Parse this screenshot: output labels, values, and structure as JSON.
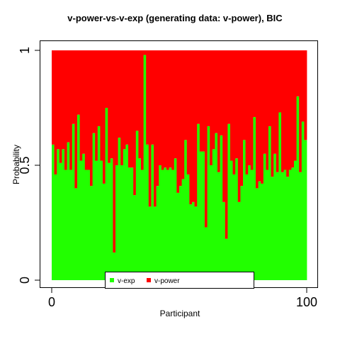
{
  "chart_data": {
    "type": "bar",
    "stacked": true,
    "title": "v-power-vs-v-exp (generating data: v-power), BIC",
    "xlabel": "Participant",
    "ylabel": "Probability",
    "xlim": [
      0,
      100
    ],
    "ylim": [
      0,
      1
    ],
    "xticks": [
      0,
      100
    ],
    "yticks": [
      0,
      0.5,
      1
    ],
    "xtick_labels": [
      "0",
      "100"
    ],
    "ytick_labels": [
      "0",
      "0.5",
      "1"
    ],
    "legend": {
      "position": "bottom-center",
      "entries": [
        "v-exp",
        "v-power"
      ]
    },
    "colors": {
      "v-exp": "#22ff00",
      "v-power": "#ff0000"
    },
    "x": [
      1,
      2,
      3,
      4,
      5,
      6,
      7,
      8,
      9,
      10,
      11,
      12,
      13,
      14,
      15,
      16,
      17,
      18,
      19,
      20,
      21,
      22,
      23,
      24,
      25,
      26,
      27,
      28,
      29,
      30,
      31,
      32,
      33,
      34,
      35,
      36,
      37,
      38,
      39,
      40,
      41,
      42,
      43,
      44,
      45,
      46,
      47,
      48,
      49,
      50,
      51,
      52,
      53,
      54,
      55,
      56,
      57,
      58,
      59,
      60,
      61,
      62,
      63,
      64,
      65,
      66,
      67,
      68,
      69,
      70,
      71,
      72,
      73,
      74,
      75,
      76,
      77,
      78,
      79,
      80,
      81,
      82,
      83,
      84,
      85,
      86,
      87,
      88,
      89,
      90,
      91,
      92,
      93,
      94,
      95,
      96,
      97,
      98,
      99,
      100
    ],
    "series": [
      {
        "name": "v-exp",
        "values": [
          0.59,
          0.46,
          0.57,
          0.51,
          0.57,
          0.48,
          0.6,
          0.48,
          0.68,
          0.4,
          0.72,
          0.52,
          0.55,
          0.48,
          0.48,
          0.41,
          0.64,
          0.52,
          0.67,
          0.52,
          0.42,
          0.75,
          0.51,
          0.53,
          0.12,
          0.5,
          0.62,
          0.5,
          0.57,
          0.59,
          0.49,
          0.49,
          0.37,
          0.65,
          0.53,
          0.48,
          0.98,
          0.59,
          0.32,
          0.59,
          0.32,
          0.41,
          0.5,
          0.48,
          0.49,
          0.48,
          0.49,
          0.48,
          0.53,
          0.38,
          0.41,
          0.44,
          0.61,
          0.46,
          0.33,
          0.34,
          0.32,
          0.68,
          0.56,
          0.56,
          0.23,
          0.67,
          0.5,
          0.57,
          0.64,
          0.47,
          0.63,
          0.34,
          0.18,
          0.68,
          0.52,
          0.46,
          0.53,
          0.34,
          0.41,
          0.61,
          0.46,
          0.5,
          0.48,
          0.71,
          0.4,
          0.43,
          0.42,
          0.55,
          0.48,
          0.67,
          0.45,
          0.55,
          0.47,
          0.73,
          0.47,
          0.48,
          0.45,
          0.48,
          0.49,
          0.52,
          0.8,
          0.47,
          0.69,
          0.61
        ]
      },
      {
        "name": "v-power",
        "values": [
          0.41,
          0.54,
          0.43,
          0.49,
          0.43,
          0.52,
          0.4,
          0.52,
          0.32,
          0.6,
          0.28,
          0.48,
          0.45,
          0.52,
          0.52,
          0.59,
          0.36,
          0.48,
          0.33,
          0.48,
          0.58,
          0.25,
          0.49,
          0.47,
          0.88,
          0.5,
          0.38,
          0.5,
          0.43,
          0.41,
          0.51,
          0.51,
          0.63,
          0.35,
          0.47,
          0.52,
          0.02,
          0.41,
          0.68,
          0.41,
          0.68,
          0.59,
          0.5,
          0.52,
          0.51,
          0.52,
          0.51,
          0.52,
          0.47,
          0.62,
          0.59,
          0.56,
          0.39,
          0.54,
          0.67,
          0.66,
          0.68,
          0.32,
          0.44,
          0.44,
          0.77,
          0.33,
          0.5,
          0.43,
          0.36,
          0.53,
          0.37,
          0.66,
          0.82,
          0.32,
          0.48,
          0.54,
          0.47,
          0.66,
          0.59,
          0.39,
          0.54,
          0.5,
          0.52,
          0.29,
          0.6,
          0.57,
          0.58,
          0.45,
          0.52,
          0.33,
          0.55,
          0.45,
          0.53,
          0.27,
          0.53,
          0.52,
          0.55,
          0.52,
          0.51,
          0.48,
          0.2,
          0.53,
          0.31,
          0.39
        ]
      }
    ],
    "grid": false
  }
}
